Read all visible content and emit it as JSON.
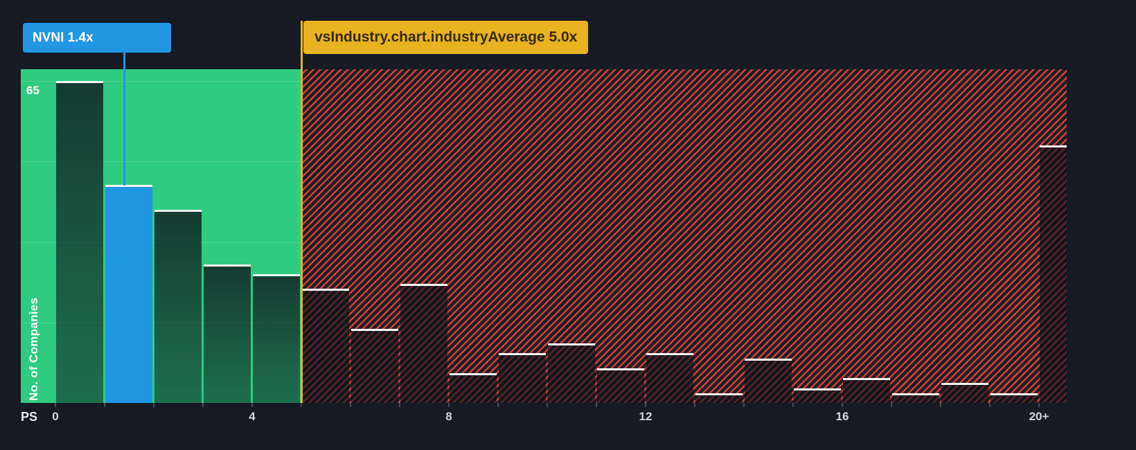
{
  "page": {
    "background": "#151a23"
  },
  "tooltips": {
    "company": {
      "label": "NVNI 1.4x",
      "color": "#2196e3",
      "text_color": "#ffffff"
    },
    "industry": {
      "label": "vsIndustry.chart.industryAverage 5.0x",
      "color": "#e9b220",
      "text_color": "#352b09"
    }
  },
  "axis": {
    "x_title": "PS",
    "y_label": "No. of Companies",
    "y_max_label": "65"
  },
  "chart_data": {
    "type": "bar",
    "title": "",
    "xlabel": "PS",
    "ylabel": "No. of Companies",
    "ylim": [
      0,
      65
    ],
    "grid": "faint horizontal lines inside below-average region",
    "legend_position": "none",
    "bucket_width": 1,
    "categories": [
      "0-1",
      "1-2",
      "2-3",
      "3-4",
      "4-5",
      "5-6",
      "6-7",
      "7-8",
      "8-9",
      "9-10",
      "10-11",
      "11-12",
      "12-13",
      "13-14",
      "14-15",
      "15-16",
      "16-17",
      "17-18",
      "18-19",
      "19-20",
      "20+"
    ],
    "values": [
      65,
      44,
      39,
      28,
      26,
      23,
      15,
      24,
      6,
      10,
      12,
      7,
      10,
      2,
      9,
      3,
      5,
      2,
      4,
      2,
      52
    ],
    "gridline_values": [
      16.25,
      32.5,
      48.75,
      65
    ],
    "x_axis_ticks": [
      {
        "label": "0",
        "value": 0
      },
      {
        "label": "4",
        "value": 4
      },
      {
        "label": "8",
        "value": 8
      },
      {
        "label": "12",
        "value": 12
      },
      {
        "label": "16",
        "value": 16
      },
      {
        "label": "20+",
        "value": 20
      }
    ],
    "highlight": {
      "index": 1,
      "label": "NVNI 1.4x",
      "value_x": 1.4,
      "color": "#2196e3"
    },
    "industry_average": {
      "label": "vsIndustry.chart.industryAverage 5.0x",
      "value_x": 5,
      "color": "#e9b220"
    },
    "regions": [
      {
        "name": "below-industry-average",
        "x_from": 0,
        "x_to": 5,
        "fill": "#2ecb80"
      },
      {
        "name": "above-industry-average",
        "x_from": 5,
        "x_to": 20.5,
        "fill": "red-hatch",
        "hatch_color": "#eb493a"
      }
    ]
  }
}
